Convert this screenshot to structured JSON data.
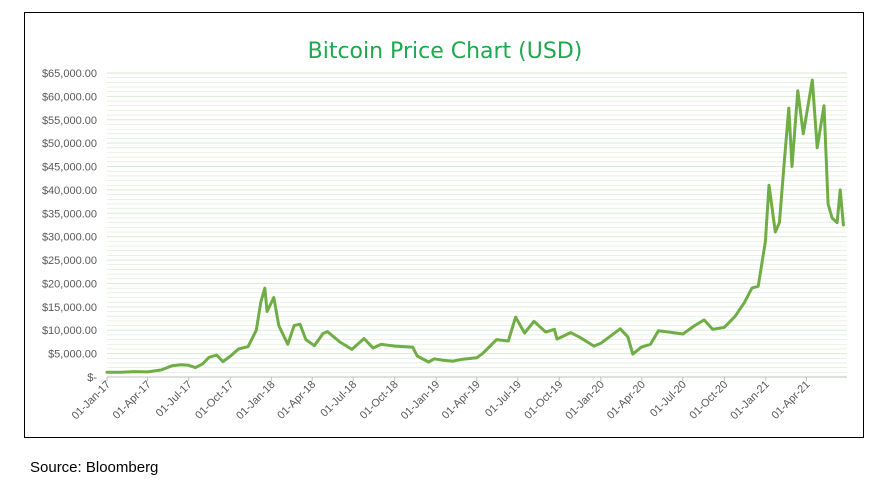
{
  "source_note": "Source: Bloomberg",
  "colors": {
    "line": "#70ad47",
    "grid": "#d9ead3",
    "title": "#1fa84f"
  },
  "chart_data": {
    "type": "line",
    "title": "Bitcoin Price Chart (USD)",
    "xlabel": "",
    "ylabel": "",
    "ylim": [
      0,
      65000
    ],
    "grid": true,
    "y_ticks": [
      {
        "value": 65000,
        "label": "$65,000.00"
      },
      {
        "value": 60000,
        "label": "$60,000.00"
      },
      {
        "value": 55000,
        "label": "$55,000.00"
      },
      {
        "value": 50000,
        "label": "$50,000.00"
      },
      {
        "value": 45000,
        "label": "$45,000.00"
      },
      {
        "value": 40000,
        "label": "$40,000.00"
      },
      {
        "value": 35000,
        "label": "$35,000.00"
      },
      {
        "value": 30000,
        "label": "$30,000.00"
      },
      {
        "value": 25000,
        "label": "$25,000.00"
      },
      {
        "value": 20000,
        "label": "$20,000.00"
      },
      {
        "value": 15000,
        "label": "$15,000.00"
      },
      {
        "value": 10000,
        "label": "$10,000.00"
      },
      {
        "value": 5000,
        "label": "$5,000.00"
      },
      {
        "value": 0,
        "label": "$-"
      }
    ],
    "x_ticks": [
      "01-Jan-17",
      "01-Apr-17",
      "01-Jul-17",
      "01-Oct-17",
      "01-Jan-18",
      "01-Apr-18",
      "01-Jul-18",
      "01-Oct-18",
      "01-Jan-19",
      "01-Apr-19",
      "01-Jul-19",
      "01-Oct-19",
      "01-Jan-20",
      "01-Apr-20",
      "01-Jul-20",
      "01-Oct-20",
      "01-Jan-21",
      "01-Apr-21"
    ],
    "xlim": [
      "2017-01-01",
      "2021-06-30"
    ],
    "series": [
      {
        "points": [
          [
            "2017-01-01",
            1000
          ],
          [
            "2017-02-01",
            1000
          ],
          [
            "2017-03-01",
            1150
          ],
          [
            "2017-04-01",
            1100
          ],
          [
            "2017-05-01",
            1500
          ],
          [
            "2017-05-25",
            2400
          ],
          [
            "2017-06-15",
            2600
          ],
          [
            "2017-07-01",
            2500
          ],
          [
            "2017-07-16",
            2000
          ],
          [
            "2017-08-01",
            2800
          ],
          [
            "2017-08-15",
            4200
          ],
          [
            "2017-09-01",
            4700
          ],
          [
            "2017-09-15",
            3300
          ],
          [
            "2017-10-01",
            4400
          ],
          [
            "2017-10-20",
            6000
          ],
          [
            "2017-11-10",
            6500
          ],
          [
            "2017-11-28",
            10000
          ],
          [
            "2017-12-08",
            16000
          ],
          [
            "2017-12-17",
            19000
          ],
          [
            "2017-12-22",
            14000
          ],
          [
            "2018-01-06",
            17000
          ],
          [
            "2018-01-17",
            11000
          ],
          [
            "2018-02-06",
            7000
          ],
          [
            "2018-02-20",
            11000
          ],
          [
            "2018-03-05",
            11300
          ],
          [
            "2018-03-18",
            8000
          ],
          [
            "2018-04-06",
            6700
          ],
          [
            "2018-04-25",
            9300
          ],
          [
            "2018-05-05",
            9700
          ],
          [
            "2018-06-01",
            7500
          ],
          [
            "2018-06-28",
            5900
          ],
          [
            "2018-07-25",
            8200
          ],
          [
            "2018-08-14",
            6200
          ],
          [
            "2018-09-01",
            7000
          ],
          [
            "2018-10-01",
            6600
          ],
          [
            "2018-11-10",
            6400
          ],
          [
            "2018-11-20",
            4500
          ],
          [
            "2018-12-15",
            3200
          ],
          [
            "2018-12-28",
            3900
          ],
          [
            "2019-01-15",
            3600
          ],
          [
            "2019-02-07",
            3400
          ],
          [
            "2019-03-01",
            3800
          ],
          [
            "2019-04-01",
            4100
          ],
          [
            "2019-04-15",
            5100
          ],
          [
            "2019-05-15",
            8000
          ],
          [
            "2019-06-10",
            7700
          ],
          [
            "2019-06-26",
            12800
          ],
          [
            "2019-07-16",
            9400
          ],
          [
            "2019-08-06",
            11900
          ],
          [
            "2019-09-01",
            9600
          ],
          [
            "2019-09-20",
            10200
          ],
          [
            "2019-09-26",
            8100
          ],
          [
            "2019-10-26",
            9500
          ],
          [
            "2019-11-15",
            8500
          ],
          [
            "2019-12-17",
            6600
          ],
          [
            "2020-01-01",
            7200
          ],
          [
            "2020-02-13",
            10300
          ],
          [
            "2020-03-01",
            8600
          ],
          [
            "2020-03-12",
            4900
          ],
          [
            "2020-03-31",
            6400
          ],
          [
            "2020-04-20",
            7000
          ],
          [
            "2020-05-08",
            9900
          ],
          [
            "2020-06-01",
            9600
          ],
          [
            "2020-07-01",
            9200
          ],
          [
            "2020-07-27",
            11000
          ],
          [
            "2020-08-17",
            12200
          ],
          [
            "2020-09-05",
            10200
          ],
          [
            "2020-10-01",
            10600
          ],
          [
            "2020-10-25",
            13000
          ],
          [
            "2020-11-15",
            16000
          ],
          [
            "2020-12-01",
            19000
          ],
          [
            "2020-12-15",
            19400
          ],
          [
            "2020-12-31",
            29000
          ],
          [
            "2021-01-08",
            41000
          ],
          [
            "2021-01-22",
            31000
          ],
          [
            "2021-01-31",
            33000
          ],
          [
            "2021-02-10",
            45000
          ],
          [
            "2021-02-21",
            57500
          ],
          [
            "2021-02-28",
            45000
          ],
          [
            "2021-03-13",
            61200
          ],
          [
            "2021-03-25",
            52000
          ],
          [
            "2021-04-14",
            63500
          ],
          [
            "2021-04-25",
            49000
          ],
          [
            "2021-05-10",
            58000
          ],
          [
            "2021-05-19",
            37000
          ],
          [
            "2021-05-28",
            34000
          ],
          [
            "2021-06-08",
            33000
          ],
          [
            "2021-06-15",
            40000
          ],
          [
            "2021-06-22",
            32500
          ]
        ]
      }
    ]
  }
}
